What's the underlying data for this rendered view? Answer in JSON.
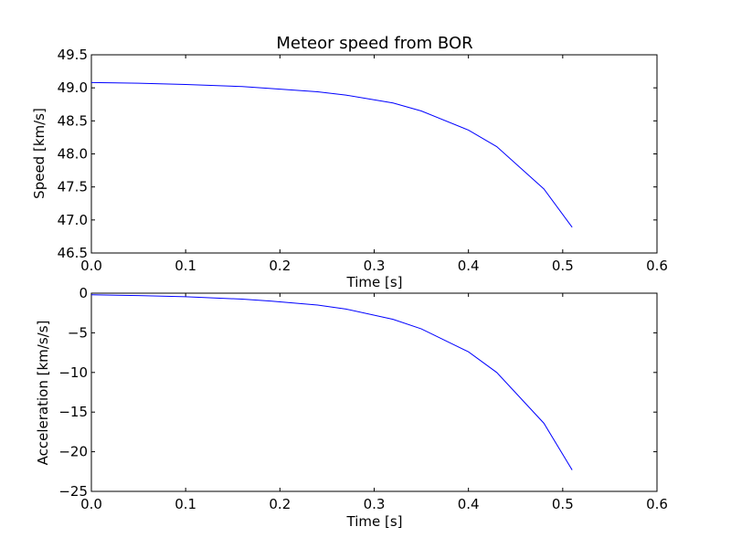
{
  "chart_data": [
    {
      "type": "line",
      "title": "Meteor speed from  BOR",
      "xlabel": "Time [s]",
      "ylabel": "Speed [km/s]",
      "xlim": [
        0.0,
        0.6
      ],
      "ylim": [
        46.5,
        49.5
      ],
      "xticks": [
        0.0,
        0.1,
        0.2,
        0.3,
        0.4,
        0.5,
        0.6
      ],
      "xtick_labels": [
        "0.0",
        "0.1",
        "0.2",
        "0.3",
        "0.4",
        "0.5",
        "0.6"
      ],
      "yticks": [
        46.5,
        47.0,
        47.5,
        48.0,
        48.5,
        49.0,
        49.5
      ],
      "ytick_labels": [
        "46.5",
        "47.0",
        "47.5",
        "48.0",
        "48.5",
        "49.0",
        "49.5"
      ],
      "grid": false,
      "series": [
        {
          "color": "#0000ff",
          "x": [
            0.0,
            0.05,
            0.1,
            0.16,
            0.19,
            0.24,
            0.27,
            0.32,
            0.35,
            0.4,
            0.43,
            0.48,
            0.51
          ],
          "y": [
            49.08,
            49.07,
            49.05,
            49.02,
            48.99,
            48.94,
            48.89,
            48.77,
            48.65,
            48.36,
            48.11,
            47.47,
            46.89
          ]
        }
      ]
    },
    {
      "type": "line",
      "title": "",
      "xlabel": "Time [s]",
      "ylabel": "Acceleration [km/s/s]",
      "xlim": [
        0.0,
        0.6
      ],
      "ylim": [
        -25,
        0
      ],
      "xticks": [
        0.0,
        0.1,
        0.2,
        0.3,
        0.4,
        0.5,
        0.6
      ],
      "xtick_labels": [
        "0.0",
        "0.1",
        "0.2",
        "0.3",
        "0.4",
        "0.5",
        "0.6"
      ],
      "yticks": [
        -25,
        -20,
        -15,
        -10,
        -5,
        0
      ],
      "ytick_labels": [
        "−25",
        "−20",
        "−15",
        "−10",
        "−5",
        "0"
      ],
      "grid": false,
      "series": [
        {
          "color": "#0000ff",
          "x": [
            0.0,
            0.05,
            0.1,
            0.16,
            0.19,
            0.24,
            0.27,
            0.32,
            0.35,
            0.4,
            0.43,
            0.48,
            0.51
          ],
          "y": [
            -0.2,
            -0.3,
            -0.45,
            -0.75,
            -1.0,
            -1.5,
            -2.0,
            -3.3,
            -4.5,
            -7.4,
            -10.0,
            -16.4,
            -22.3
          ]
        }
      ]
    }
  ]
}
